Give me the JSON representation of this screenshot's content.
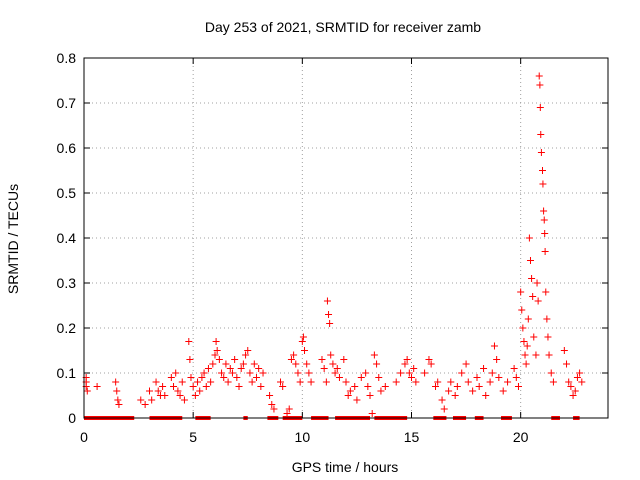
{
  "chart_data": {
    "type": "scatter",
    "title": "Day 253 of 2021, SRMTID for receiver zamb",
    "xlabel": "GPS time / hours",
    "ylabel": "SRMTID / TECUs",
    "xlim": [
      0,
      24
    ],
    "ylim": [
      0,
      0.8
    ],
    "grid": true,
    "marker": "+",
    "color": "#ff0000",
    "x_ticks": [
      "0",
      "5",
      "10",
      "15",
      "20"
    ],
    "y_ticks": [
      "0",
      "0.1",
      "0.2",
      "0.3",
      "0.4",
      "0.5",
      "0.6",
      "0.7",
      "0.8"
    ],
    "series": [
      {
        "name": "SRMTID",
        "points": [
          [
            0.1,
            0.09
          ],
          [
            0.1,
            0.08
          ],
          [
            0.1,
            0.07
          ],
          [
            0.15,
            0.06
          ],
          [
            0.6,
            0.07
          ],
          [
            1.45,
            0.08
          ],
          [
            1.5,
            0.06
          ],
          [
            1.55,
            0.04
          ],
          [
            1.6,
            0.03
          ],
          [
            2.6,
            0.04
          ],
          [
            2.8,
            0.03
          ],
          [
            3.0,
            0.06
          ],
          [
            3.1,
            0.04
          ],
          [
            3.3,
            0.08
          ],
          [
            3.4,
            0.06
          ],
          [
            3.5,
            0.05
          ],
          [
            3.6,
            0.07
          ],
          [
            3.7,
            0.05
          ],
          [
            4.0,
            0.09
          ],
          [
            4.1,
            0.07
          ],
          [
            4.2,
            0.1
          ],
          [
            4.3,
            0.06
          ],
          [
            4.4,
            0.05
          ],
          [
            4.5,
            0.08
          ],
          [
            4.6,
            0.04
          ],
          [
            4.8,
            0.17
          ],
          [
            4.85,
            0.13
          ],
          [
            4.9,
            0.09
          ],
          [
            5.0,
            0.07
          ],
          [
            5.1,
            0.05
          ],
          [
            5.2,
            0.08
          ],
          [
            5.3,
            0.06
          ],
          [
            5.4,
            0.09
          ],
          [
            5.5,
            0.1
          ],
          [
            5.6,
            0.07
          ],
          [
            5.7,
            0.11
          ],
          [
            5.8,
            0.08
          ],
          [
            5.9,
            0.12
          ],
          [
            6.0,
            0.14
          ],
          [
            6.05,
            0.17
          ],
          [
            6.1,
            0.15
          ],
          [
            6.2,
            0.13
          ],
          [
            6.3,
            0.1
          ],
          [
            6.4,
            0.09
          ],
          [
            6.5,
            0.12
          ],
          [
            6.6,
            0.08
          ],
          [
            6.7,
            0.11
          ],
          [
            6.8,
            0.1
          ],
          [
            6.9,
            0.13
          ],
          [
            7.0,
            0.09
          ],
          [
            7.1,
            0.07
          ],
          [
            7.2,
            0.11
          ],
          [
            7.3,
            0.12
          ],
          [
            7.4,
            0.14
          ],
          [
            7.5,
            0.15
          ],
          [
            7.6,
            0.1
          ],
          [
            7.7,
            0.08
          ],
          [
            7.8,
            0.12
          ],
          [
            7.9,
            0.09
          ],
          [
            8.0,
            0.11
          ],
          [
            8.1,
            0.07
          ],
          [
            8.2,
            0.1
          ],
          [
            8.5,
            0.05
          ],
          [
            8.6,
            0.03
          ],
          [
            8.7,
            0.02
          ],
          [
            9.0,
            0.08
          ],
          [
            9.1,
            0.07
          ],
          [
            9.3,
            0.01
          ],
          [
            9.4,
            0.02
          ],
          [
            9.5,
            0.13
          ],
          [
            9.6,
            0.14
          ],
          [
            9.7,
            0.12
          ],
          [
            9.8,
            0.1
          ],
          [
            9.9,
            0.08
          ],
          [
            10.0,
            0.17
          ],
          [
            10.05,
            0.18
          ],
          [
            10.1,
            0.15
          ],
          [
            10.2,
            0.12
          ],
          [
            10.3,
            0.1
          ],
          [
            10.4,
            0.08
          ],
          [
            10.9,
            0.13
          ],
          [
            11.0,
            0.11
          ],
          [
            11.1,
            0.08
          ],
          [
            11.15,
            0.26
          ],
          [
            11.2,
            0.23
          ],
          [
            11.25,
            0.21
          ],
          [
            11.3,
            0.14
          ],
          [
            11.4,
            0.12
          ],
          [
            11.5,
            0.1
          ],
          [
            11.6,
            0.11
          ],
          [
            11.7,
            0.09
          ],
          [
            11.9,
            0.13
          ],
          [
            12.0,
            0.08
          ],
          [
            12.1,
            0.05
          ],
          [
            12.2,
            0.06
          ],
          [
            12.4,
            0.07
          ],
          [
            12.5,
            0.04
          ],
          [
            12.7,
            0.09
          ],
          [
            12.9,
            0.1
          ],
          [
            13.0,
            0.07
          ],
          [
            13.1,
            0.05
          ],
          [
            13.2,
            0.01
          ],
          [
            13.3,
            0.14
          ],
          [
            13.4,
            0.12
          ],
          [
            13.5,
            0.09
          ],
          [
            13.6,
            0.06
          ],
          [
            13.8,
            0.07
          ],
          [
            14.3,
            0.08
          ],
          [
            14.5,
            0.1
          ],
          [
            14.7,
            0.12
          ],
          [
            14.8,
            0.13
          ],
          [
            14.9,
            0.1
          ],
          [
            15.0,
            0.09
          ],
          [
            15.1,
            0.11
          ],
          [
            15.2,
            0.08
          ],
          [
            15.6,
            0.1
          ],
          [
            15.8,
            0.13
          ],
          [
            15.9,
            0.12
          ],
          [
            16.1,
            0.07
          ],
          [
            16.2,
            0.08
          ],
          [
            16.4,
            0.04
          ],
          [
            16.5,
            0.02
          ],
          [
            16.7,
            0.06
          ],
          [
            16.8,
            0.08
          ],
          [
            17.0,
            0.05
          ],
          [
            17.1,
            0.07
          ],
          [
            17.3,
            0.1
          ],
          [
            17.5,
            0.12
          ],
          [
            17.6,
            0.08
          ],
          [
            17.8,
            0.06
          ],
          [
            18.0,
            0.09
          ],
          [
            18.1,
            0.07
          ],
          [
            18.3,
            0.11
          ],
          [
            18.4,
            0.05
          ],
          [
            18.6,
            0.08
          ],
          [
            18.7,
            0.1
          ],
          [
            18.8,
            0.16
          ],
          [
            18.9,
            0.13
          ],
          [
            19.0,
            0.09
          ],
          [
            19.2,
            0.06
          ],
          [
            19.4,
            0.08
          ],
          [
            19.7,
            0.11
          ],
          [
            19.8,
            0.09
          ],
          [
            19.9,
            0.07
          ],
          [
            20.0,
            0.28
          ],
          [
            20.05,
            0.24
          ],
          [
            20.1,
            0.2
          ],
          [
            20.15,
            0.17
          ],
          [
            20.2,
            0.14
          ],
          [
            20.25,
            0.12
          ],
          [
            20.3,
            0.16
          ],
          [
            20.35,
            0.22
          ],
          [
            20.4,
            0.4
          ],
          [
            20.45,
            0.35
          ],
          [
            20.5,
            0.31
          ],
          [
            20.55,
            0.27
          ],
          [
            20.6,
            0.18
          ],
          [
            20.7,
            0.14
          ],
          [
            20.75,
            0.3
          ],
          [
            20.8,
            0.26
          ],
          [
            20.85,
            0.76
          ],
          [
            20.88,
            0.74
          ],
          [
            20.9,
            0.69
          ],
          [
            20.92,
            0.63
          ],
          [
            20.95,
            0.59
          ],
          [
            21.0,
            0.55
          ],
          [
            21.02,
            0.52
          ],
          [
            21.05,
            0.46
          ],
          [
            21.08,
            0.44
          ],
          [
            21.1,
            0.41
          ],
          [
            21.12,
            0.37
          ],
          [
            21.15,
            0.28
          ],
          [
            21.2,
            0.22
          ],
          [
            21.25,
            0.18
          ],
          [
            21.3,
            0.14
          ],
          [
            21.4,
            0.1
          ],
          [
            21.5,
            0.08
          ],
          [
            22.0,
            0.15
          ],
          [
            22.1,
            0.12
          ],
          [
            22.2,
            0.08
          ],
          [
            22.3,
            0.07
          ],
          [
            22.4,
            0.05
          ],
          [
            22.5,
            0.06
          ],
          [
            22.6,
            0.09
          ],
          [
            22.7,
            0.1
          ],
          [
            22.8,
            0.08
          ]
        ],
        "zero_segments": [
          [
            0.0,
            2.3
          ],
          [
            3.0,
            4.5
          ],
          [
            5.1,
            5.8
          ],
          [
            7.3,
            7.5
          ],
          [
            8.4,
            8.9
          ],
          [
            9.1,
            10.0
          ],
          [
            10.4,
            11.2
          ],
          [
            11.5,
            13.1
          ],
          [
            13.3,
            14.8
          ],
          [
            16.0,
            16.6
          ],
          [
            16.9,
            17.5
          ],
          [
            17.9,
            18.3
          ],
          [
            19.1,
            19.6
          ],
          [
            21.4,
            21.8
          ],
          [
            22.4,
            22.7
          ]
        ]
      }
    ]
  }
}
